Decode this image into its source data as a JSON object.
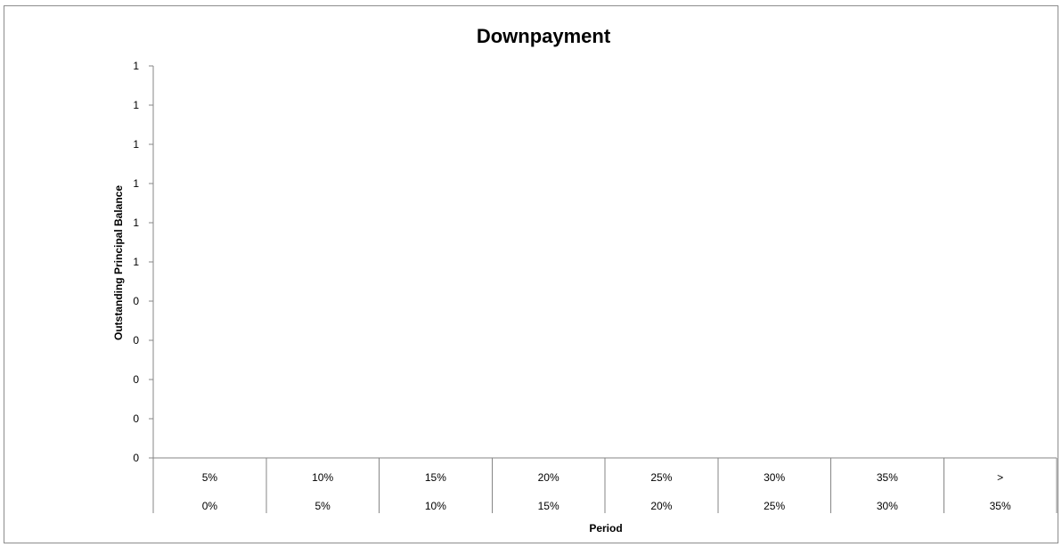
{
  "chart_data": {
    "type": "bar",
    "title": "Downpayment",
    "xlabel": "Period",
    "ylabel": "Outstanding Principal Balance",
    "categories": [
      {
        "upper": "5%",
        "lower": "0%"
      },
      {
        "upper": "10%",
        "lower": "5%"
      },
      {
        "upper": "15%",
        "lower": "10%"
      },
      {
        "upper": "20%",
        "lower": "15%"
      },
      {
        "upper": "25%",
        "lower": "20%"
      },
      {
        "upper": "30%",
        "lower": "25%"
      },
      {
        "upper": "35%",
        "lower": "30%"
      },
      {
        "upper": ">",
        "lower": "35%"
      }
    ],
    "series": [],
    "y_tick_labels": [
      "0",
      "0",
      "0",
      "0",
      "0",
      "1",
      "1",
      "1",
      "1",
      "1",
      "1"
    ],
    "ylim": [
      0,
      1
    ],
    "grid": false,
    "legend": "none",
    "colors": {
      "axis": "#868686",
      "frame": "#8c8c8c",
      "text": "#000000"
    }
  }
}
